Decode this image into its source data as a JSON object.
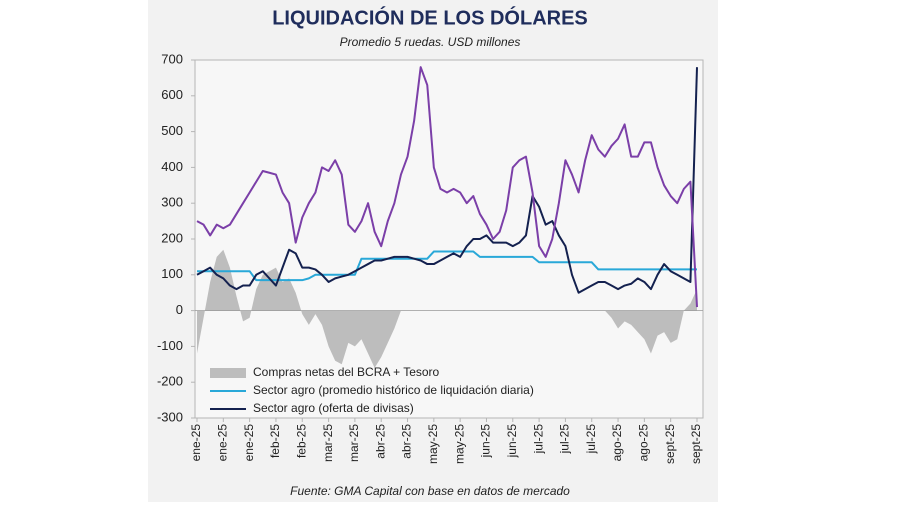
{
  "chart_data": {
    "type": "line",
    "title": "LIQUIDACIÓN DE LOS DÓLARES",
    "subtitle": "Promedio 5 ruedas. USD millones",
    "source": "Fuente: GMA Capital con base en datos de mercado",
    "ylim": [
      -300,
      700
    ],
    "yticks": [
      -300,
      -200,
      -100,
      0,
      100,
      200,
      300,
      400,
      500,
      600,
      700
    ],
    "legend": "lower left",
    "categories": [
      "ene-25",
      null,
      null,
      null,
      "ene-25",
      null,
      null,
      null,
      "ene-25",
      null,
      null,
      null,
      "feb-25",
      null,
      null,
      null,
      "feb-25",
      null,
      null,
      null,
      "mar-25",
      null,
      null,
      null,
      "mar-25",
      null,
      null,
      null,
      "abr-25",
      null,
      null,
      null,
      "abr-25",
      null,
      null,
      null,
      "may-25",
      null,
      null,
      null,
      "may-25",
      null,
      null,
      null,
      "jun-25",
      null,
      null,
      null,
      "jun-25",
      null,
      null,
      null,
      "jul-25",
      null,
      null,
      null,
      "jul-25",
      null,
      null,
      null,
      "jul-25",
      null,
      null,
      null,
      "ago-25",
      null,
      null,
      null,
      "ago-25",
      null,
      null,
      null,
      "sept-25",
      null,
      null,
      null,
      "sept-25"
    ],
    "series": [
      {
        "name": "Compras netas del BCRA + Tesoro",
        "style": "area",
        "color": "#bdbdbd",
        "values": [
          -120,
          -20,
          80,
          150,
          170,
          120,
          40,
          -30,
          -20,
          60,
          100,
          110,
          120,
          80,
          90,
          50,
          -10,
          -40,
          -10,
          -40,
          -100,
          -140,
          -150,
          -90,
          -100,
          -80,
          -120,
          -160,
          -130,
          -90,
          -50,
          0,
          0,
          0,
          0,
          0,
          0,
          0,
          0,
          0,
          0,
          0,
          0,
          0,
          0,
          0,
          0,
          0,
          0,
          0,
          0,
          0,
          0,
          0,
          0,
          0,
          0,
          0,
          0,
          0,
          0,
          0,
          0,
          -20,
          -50,
          -30,
          -40,
          -60,
          -80,
          -120,
          -70,
          -60,
          -90,
          -80,
          0,
          20,
          60
        ]
      },
      {
        "name": "Sector agro (promedio histórico de liquidación diaria)",
        "style": "line",
        "color": "#29a8d8",
        "values": [
          110,
          110,
          110,
          110,
          110,
          110,
          110,
          110,
          110,
          85,
          85,
          85,
          85,
          85,
          85,
          85,
          85,
          90,
          100,
          100,
          100,
          100,
          100,
          100,
          100,
          145,
          145,
          145,
          145,
          145,
          145,
          145,
          145,
          145,
          145,
          145,
          165,
          165,
          165,
          165,
          165,
          165,
          165,
          150,
          150,
          150,
          150,
          150,
          150,
          150,
          150,
          150,
          135,
          135,
          135,
          135,
          135,
          135,
          135,
          135,
          135,
          115,
          115,
          115,
          115,
          115,
          115,
          115,
          115,
          115,
          115,
          115,
          115,
          115,
          115,
          115,
          115
        ]
      },
      {
        "name": "Sector agro (oferta de divisas)",
        "style": "line",
        "color": "#14214f",
        "values": [
          100,
          110,
          120,
          100,
          90,
          70,
          60,
          70,
          70,
          100,
          110,
          90,
          70,
          120,
          170,
          160,
          120,
          120,
          115,
          100,
          80,
          90,
          95,
          100,
          110,
          120,
          130,
          140,
          140,
          145,
          150,
          150,
          150,
          145,
          140,
          130,
          130,
          140,
          150,
          160,
          150,
          180,
          200,
          200,
          210,
          190,
          190,
          190,
          180,
          190,
          210,
          320,
          290,
          240,
          250,
          210,
          180,
          100,
          50,
          60,
          70,
          80,
          80,
          70,
          60,
          70,
          75,
          90,
          80,
          60,
          100,
          130,
          110,
          100,
          90,
          80,
          680
        ]
      },
      {
        "style": "line",
        "color": "#7b3fa8",
        "values": [
          250,
          240,
          210,
          240,
          230,
          240,
          270,
          300,
          330,
          360,
          390,
          385,
          380,
          330,
          300,
          190,
          260,
          300,
          330,
          400,
          390,
          420,
          380,
          240,
          220,
          250,
          300,
          220,
          180,
          250,
          300,
          380,
          430,
          530,
          680,
          630,
          400,
          340,
          330,
          340,
          330,
          300,
          320,
          270,
          240,
          200,
          220,
          280,
          400,
          420,
          430,
          330,
          180,
          150,
          200,
          300,
          420,
          380,
          330,
          420,
          490,
          450,
          430,
          460,
          480,
          520,
          430,
          430,
          470,
          470,
          400,
          350,
          320,
          300,
          340,
          360,
          10
        ]
      }
    ]
  }
}
